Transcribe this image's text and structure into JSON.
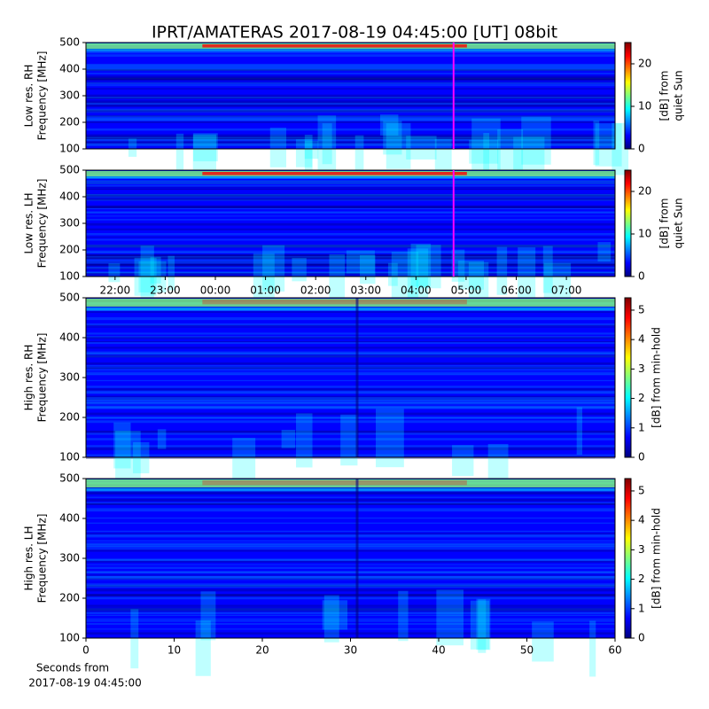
{
  "title": "IPRT/AMATERAS 2017-08-19 04:45:00 [UT]   08bit",
  "chart_data": [
    {
      "type": "spectrogram",
      "ylabel": [
        "Low res. RH",
        "Frequency [MHz]"
      ],
      "ylim": [
        100,
        500
      ],
      "yticks": [
        100,
        200,
        300,
        400,
        500
      ],
      "xlim": [
        21.42,
        31.97
      ],
      "markers": [
        28.75
      ],
      "marker_color": "#ff00ff",
      "colorbar": {
        "label": [
          "[dB] from",
          "quiet Sun"
        ],
        "lim": [
          0,
          25
        ],
        "ticks": [
          0,
          10,
          20
        ],
        "colormap": "jet"
      }
    },
    {
      "type": "spectrogram",
      "ylabel": [
        "Low res. LH",
        "Frequency [MHz]"
      ],
      "ylim": [
        100,
        500
      ],
      "yticks": [
        100,
        200,
        300,
        400,
        500
      ],
      "xlim": [
        21.42,
        31.97
      ],
      "xticks": [
        {
          "value": 22,
          "label": "22:00"
        },
        {
          "value": 23,
          "label": "23:00"
        },
        {
          "value": 24,
          "label": "00:00"
        },
        {
          "value": 25,
          "label": "01:00"
        },
        {
          "value": 26,
          "label": "02:00"
        },
        {
          "value": 27,
          "label": "03:00"
        },
        {
          "value": 28,
          "label": "04:00"
        },
        {
          "value": 29,
          "label": "05:00"
        },
        {
          "value": 30,
          "label": "06:00"
        },
        {
          "value": 31,
          "label": "07:00"
        }
      ],
      "markers": [
        28.75
      ],
      "marker_color": "#ff00ff",
      "colorbar": {
        "label": [
          "[dB] from",
          "quiet Sun"
        ],
        "lim": [
          0,
          25
        ],
        "ticks": [
          0,
          10,
          20
        ],
        "colormap": "jet"
      }
    },
    {
      "type": "spectrogram",
      "ylabel": [
        "High res. RH",
        "Frequency [MHz]"
      ],
      "ylim": [
        100,
        500
      ],
      "yticks": [
        100,
        200,
        300,
        400,
        500
      ],
      "xlim": [
        0,
        60
      ],
      "colorbar": {
        "label": [
          "[dB] from min-hold"
        ],
        "lim": [
          0,
          5.42
        ],
        "ticks": [
          0,
          1,
          2,
          3,
          4,
          5
        ],
        "colormap": "jet"
      }
    },
    {
      "type": "spectrogram",
      "ylabel": [
        "High res. LH",
        "Frequency [MHz]"
      ],
      "ylim": [
        100,
        500
      ],
      "yticks": [
        100,
        200,
        300,
        400,
        500
      ],
      "xlim": [
        0,
        60
      ],
      "xticks": [
        0,
        10,
        20,
        30,
        40,
        50,
        60
      ],
      "xlabel": [
        "Seconds from",
        "2017-08-19 04:45:00"
      ],
      "colorbar": {
        "label": [
          "[dB] from min-hold"
        ],
        "lim": [
          0,
          5.42
        ],
        "ticks": [
          0,
          1,
          2,
          3,
          4,
          5
        ],
        "colormap": "jet"
      }
    }
  ]
}
